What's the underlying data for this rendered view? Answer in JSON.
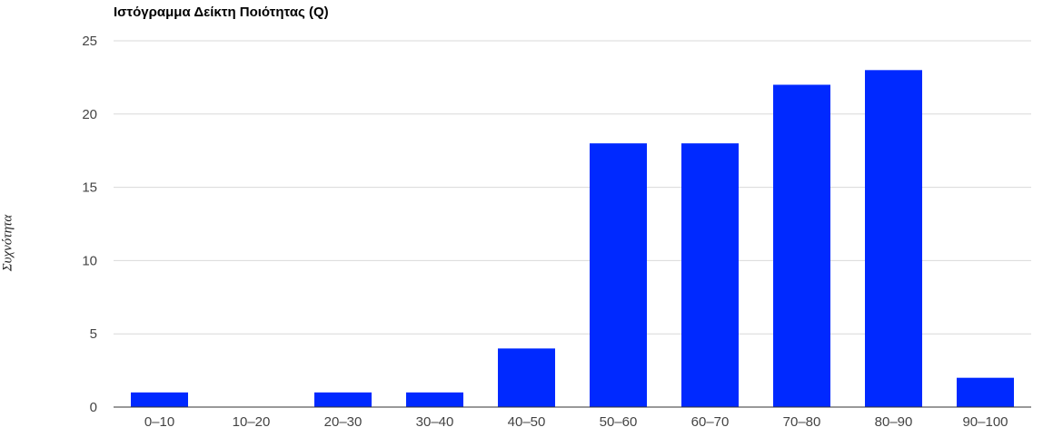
{
  "chart_data": {
    "type": "bar",
    "title": "Ιστόγραμμα Δείκτη Ποιότητας (Q)",
    "xlabel": "",
    "ylabel": "Συχνότητα",
    "categories": [
      "0–10",
      "10–20",
      "20–30",
      "30–40",
      "40–50",
      "50–60",
      "60–70",
      "70–80",
      "80–90",
      "90–100"
    ],
    "values": [
      1,
      0,
      1,
      1,
      4,
      18,
      18,
      22,
      23,
      2
    ],
    "ylim": [
      0,
      25
    ],
    "yticks": [
      0,
      5,
      10,
      15,
      20,
      25
    ],
    "grid": true,
    "legend": "none",
    "colors": {
      "bar": "#0029ff",
      "grid": "#d9d9d9",
      "axis": "#333333"
    }
  }
}
